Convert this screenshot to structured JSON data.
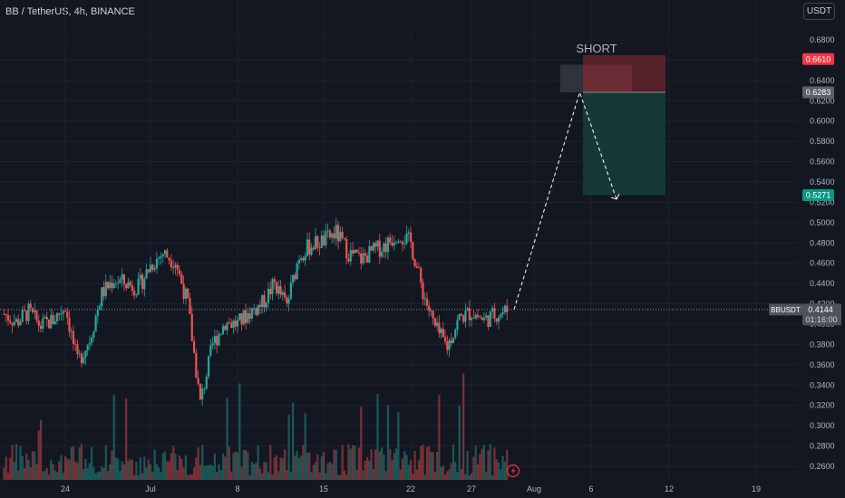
{
  "header": {
    "symbol_title": "BB / TetherUS, 4h, BINANCE",
    "currency_button": "USDT"
  },
  "chart_data": {
    "type": "candlestick",
    "title": "BB / TetherUS, 4h, BINANCE",
    "y_unit": "USDT",
    "ylim": [
      0.25,
      0.695
    ],
    "y_ticks": [
      "0.6800",
      "0.6600",
      "0.6400",
      "0.6200",
      "0.6000",
      "0.5800",
      "0.5600",
      "0.5400",
      "0.5200",
      "0.5000",
      "0.4800",
      "0.4600",
      "0.4400",
      "0.4200",
      "0.4000",
      "0.3800",
      "0.3600",
      "0.3400",
      "0.3200",
      "0.3000",
      "0.2800",
      "0.2600"
    ],
    "x_ticks": [
      "24",
      "Jul",
      "8",
      "15",
      "22",
      "27",
      "Aug",
      "6",
      "12",
      "19"
    ],
    "close_path": [
      {
        "date": "Jun 19",
        "close": 0.41
      },
      {
        "date": "Jun 20",
        "close": 0.402
      },
      {
        "date": "Jun 21",
        "close": 0.412
      },
      {
        "date": "Jun 22",
        "close": 0.398
      },
      {
        "date": "Jun 23",
        "close": 0.404
      },
      {
        "date": "Jun 24",
        "close": 0.418
      },
      {
        "date": "Jun 25",
        "close": 0.362
      },
      {
        "date": "Jun 26",
        "close": 0.385
      },
      {
        "date": "Jun 27",
        "close": 0.43
      },
      {
        "date": "Jun 28",
        "close": 0.444
      },
      {
        "date": "Jun 29",
        "close": 0.44
      },
      {
        "date": "Jun 30",
        "close": 0.436
      },
      {
        "date": "Jul 1",
        "close": 0.458
      },
      {
        "date": "Jul 2",
        "close": 0.47
      },
      {
        "date": "Jul 3",
        "close": 0.462
      },
      {
        "date": "Jul 4",
        "close": 0.42
      },
      {
        "date": "Jul 5",
        "close": 0.322
      },
      {
        "date": "Jul 6",
        "close": 0.38
      },
      {
        "date": "Jul 7",
        "close": 0.402
      },
      {
        "date": "Jul 8",
        "close": 0.4
      },
      {
        "date": "Jul 9",
        "close": 0.412
      },
      {
        "date": "Jul 10",
        "close": 0.42
      },
      {
        "date": "Jul 11",
        "close": 0.44
      },
      {
        "date": "Jul 12",
        "close": 0.418
      },
      {
        "date": "Jul 13",
        "close": 0.468
      },
      {
        "date": "Jul 14",
        "close": 0.478
      },
      {
        "date": "Jul 15",
        "close": 0.482
      },
      {
        "date": "Jul 16",
        "close": 0.49
      },
      {
        "date": "Jul 17",
        "close": 0.47
      },
      {
        "date": "Jul 18",
        "close": 0.464
      },
      {
        "date": "Jul 19",
        "close": 0.472
      },
      {
        "date": "Jul 20",
        "close": 0.478
      },
      {
        "date": "Jul 21",
        "close": 0.49
      },
      {
        "date": "Jul 22",
        "close": 0.48
      },
      {
        "date": "Jul 23",
        "close": 0.432
      },
      {
        "date": "Jul 24",
        "close": 0.396
      },
      {
        "date": "Jul 25",
        "close": 0.378
      },
      {
        "date": "Jul 26",
        "close": 0.406
      },
      {
        "date": "Jul 27",
        "close": 0.412
      },
      {
        "date": "Jul 28",
        "close": 0.404
      },
      {
        "date": "Jul 29",
        "close": 0.41
      },
      {
        "date": "Jul 30",
        "close": 0.414
      }
    ],
    "volume_axis_max": 1.0,
    "price_label": {
      "symbol": "BBUSDT",
      "price": "0.4144",
      "countdown": "01:16:00",
      "value": 0.4144
    },
    "position": {
      "label": "SHORT",
      "stop": {
        "price": "0.6610",
        "value": 0.661
      },
      "entry": {
        "price": "0.6283",
        "value": 0.6283
      },
      "target": {
        "price": "0.5271",
        "value": 0.5271
      }
    },
    "projection": [
      {
        "date": "Jul 30",
        "price": 0.4144
      },
      {
        "date": "Aug 5",
        "price": 0.6283
      },
      {
        "date": "Aug 8",
        "price": 0.523
      }
    ],
    "colors": {
      "background": "#131722",
      "up": "#26a69a",
      "down": "#ef5350",
      "stop_zone": "#5c2229",
      "target_zone": "#153b36",
      "stop_label": "#f23645",
      "target_label": "#089981",
      "last_price_label": "#4e525c"
    }
  }
}
